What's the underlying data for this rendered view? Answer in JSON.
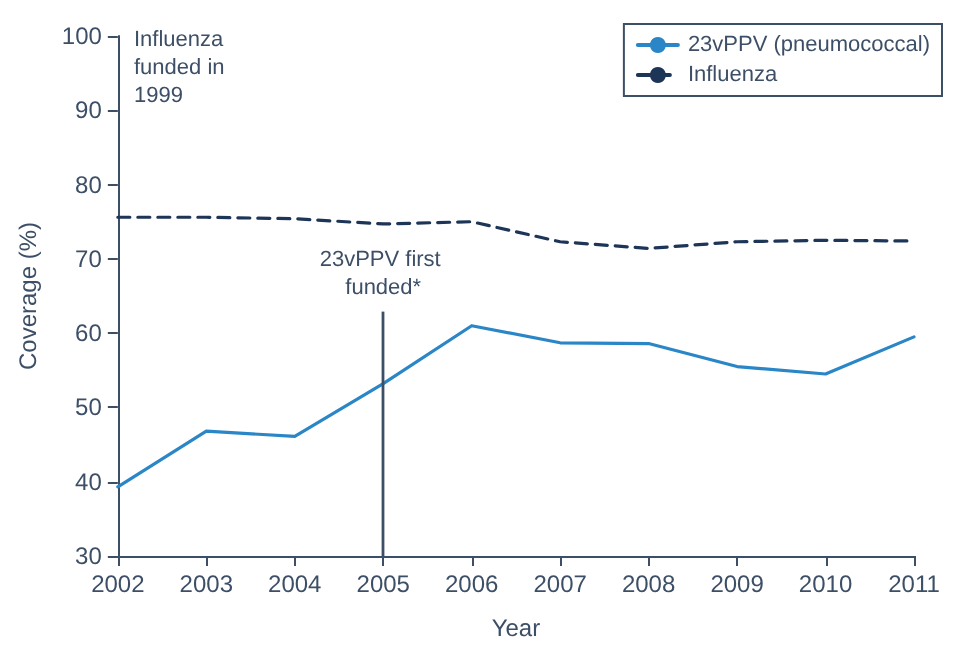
{
  "chart_data": {
    "type": "line",
    "xlabel": "Year",
    "ylabel": "Coverage (%)",
    "x": [
      2002,
      2003,
      2004,
      2005,
      2006,
      2007,
      2008,
      2009,
      2010,
      2011
    ],
    "series": [
      {
        "name": "23vPPV (pneumococcal)",
        "color": "#2a86c6",
        "line_style": "solid",
        "values": [
          39.3,
          46.8,
          46.1,
          53.2,
          61.0,
          58.7,
          58.6,
          55.5,
          54.5,
          59.5
        ]
      },
      {
        "name": "Influenza",
        "color": "#1d3557",
        "line_style": "dashed",
        "values": [
          75.6,
          75.6,
          75.4,
          74.7,
          75.0,
          72.3,
          71.4,
          72.3,
          72.5,
          72.4
        ]
      }
    ],
    "xlim": [
      2002,
      2011
    ],
    "xticks": [
      2002,
      2003,
      2004,
      2005,
      2006,
      2007,
      2008,
      2009,
      2010,
      2011
    ],
    "ylim": [
      30,
      100
    ],
    "yticks": [
      30,
      40,
      50,
      60,
      70,
      80,
      90,
      100
    ],
    "ref_lines": [
      {
        "axis": "x",
        "value": 2005,
        "label": "23vPPV first funded*",
        "color": "#3d4f66"
      }
    ],
    "annotations": [
      "Influenza funded in 1999"
    ],
    "grid": false,
    "legend": "top right",
    "marker": "none"
  }
}
